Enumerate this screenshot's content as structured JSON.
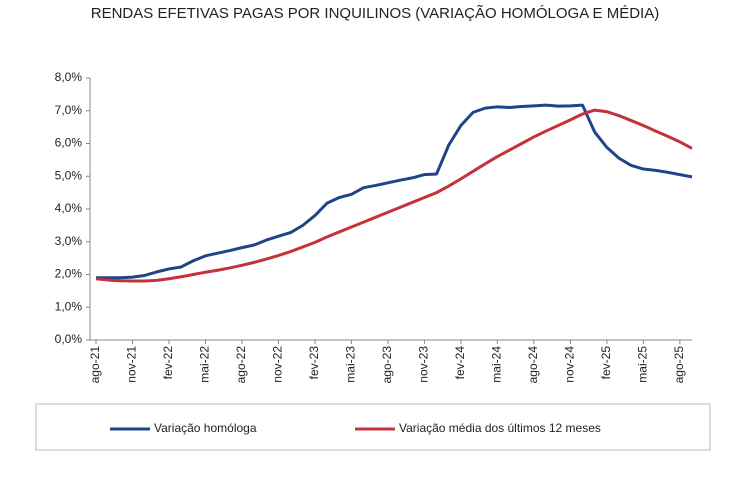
{
  "chart_data": {
    "type": "line",
    "title": "RENDAS EFETIVAS PAGAS POR INQUILINOS (VARIAÇÃO HOMÓLOGA E MÉDIA)",
    "categories": [
      "ago-21",
      null,
      null,
      "nov-21",
      null,
      null,
      "fev-22",
      null,
      null,
      "mai-22",
      null,
      null,
      "ago-22",
      null,
      null,
      "nov-22",
      null,
      null,
      "fev-23",
      null,
      null,
      "mai-23",
      null,
      null,
      "ago-23",
      null,
      null,
      "nov-23",
      null,
      null,
      "fev-24",
      null,
      null,
      "mai-24",
      null,
      null,
      "ago-24",
      null,
      null,
      "nov-24",
      null,
      null,
      "fev-25",
      null,
      null,
      "mai-25",
      null,
      null,
      "ago-25",
      null
    ],
    "series": [
      {
        "name": "Variação homóloga",
        "color": "#1f4488",
        "values": [
          1.9,
          1.9,
          1.9,
          1.92,
          1.97,
          2.08,
          2.17,
          2.23,
          2.42,
          2.57,
          2.65,
          2.73,
          2.82,
          2.9,
          3.05,
          3.17,
          3.28,
          3.5,
          3.8,
          4.18,
          4.35,
          4.45,
          4.65,
          4.72,
          4.8,
          4.88,
          4.95,
          5.05,
          5.07,
          5.95,
          6.55,
          6.95,
          7.08,
          7.12,
          7.1,
          7.13,
          7.15,
          7.17,
          7.14,
          7.15,
          7.17,
          6.35,
          5.88,
          5.55,
          5.33,
          5.22,
          5.18,
          5.12,
          5.05,
          4.98
        ]
      },
      {
        "name": "Variação média dos últimos 12 meses",
        "color": "#c4313b",
        "values": [
          1.87,
          1.83,
          1.81,
          1.8,
          1.8,
          1.82,
          1.87,
          1.93,
          2.0,
          2.07,
          2.13,
          2.2,
          2.28,
          2.37,
          2.47,
          2.58,
          2.7,
          2.84,
          2.98,
          3.15,
          3.3,
          3.45,
          3.6,
          3.75,
          3.9,
          4.05,
          4.2,
          4.35,
          4.5,
          4.7,
          4.92,
          5.15,
          5.38,
          5.6,
          5.8,
          6.0,
          6.2,
          6.38,
          6.55,
          6.72,
          6.9,
          7.02,
          6.97,
          6.85,
          6.7,
          6.55,
          6.38,
          6.22,
          6.05,
          5.85
        ]
      }
    ],
    "ylim": [
      0,
      8
    ],
    "yticks": [
      {
        "value": 0,
        "label": "0,0%"
      },
      {
        "value": 1,
        "label": "1,0%"
      },
      {
        "value": 2,
        "label": "2,0%"
      },
      {
        "value": 3,
        "label": "3,0%"
      },
      {
        "value": 4,
        "label": "4,0%"
      },
      {
        "value": 5,
        "label": "5,0%"
      },
      {
        "value": 6,
        "label": "6,0%"
      },
      {
        "value": 7,
        "label": "7,0%"
      },
      {
        "value": 8,
        "label": "8,0%"
      }
    ],
    "grid": false
  }
}
